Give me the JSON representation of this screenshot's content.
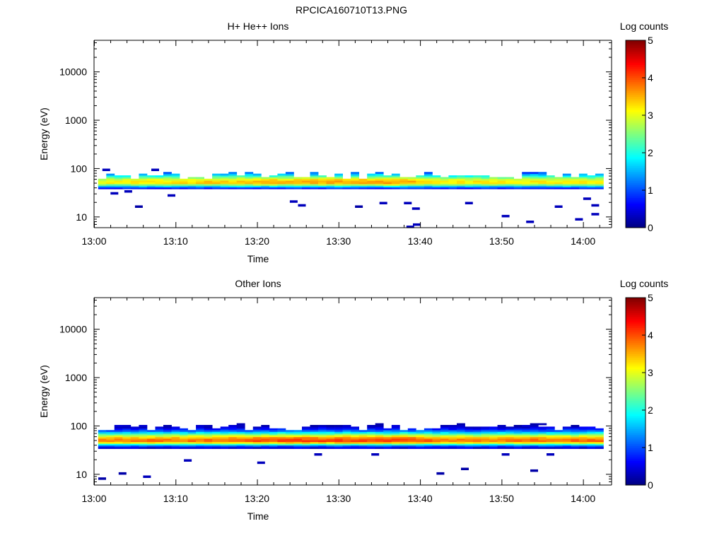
{
  "figure_title": "RPCICA160710T13.PNG",
  "colormap": [
    "#00007f",
    "#0000ff",
    "#007fff",
    "#00ffff",
    "#7fff7f",
    "#ffff00",
    "#ff7f00",
    "#ff0000",
    "#7f0000"
  ],
  "chart_data": [
    {
      "type": "heatmap",
      "title": "H+ He++ Ions",
      "xlabel": "Time",
      "ylabel": "Energy (eV)",
      "x_ticks": [
        "13:00",
        "13:10",
        "13:20",
        "13:30",
        "13:40",
        "13:50",
        "14:00"
      ],
      "x_range_minutes": [
        0,
        63.5
      ],
      "y_scale": "log",
      "y_ticks": [
        "10",
        "100",
        "1000",
        "10000"
      ],
      "y_range": [
        6,
        45000
      ],
      "colorbar": {
        "label": "Log counts",
        "range": [
          0,
          5
        ],
        "ticks": [
          "0",
          "1",
          "2",
          "3",
          "4",
          "5"
        ]
      },
      "band": {
        "peak_energy_eV": 50,
        "lower_edge_eV": 38,
        "upper_edge_eV": 70,
        "peak_log_counts": 3.5
      },
      "time_bin_minutes": 1.0,
      "peak_profile": [
        {
          "t": 0,
          "v": 3.1
        },
        {
          "t": 10,
          "v": 3.3
        },
        {
          "t": 20,
          "v": 3.5
        },
        {
          "t": 30,
          "v": 3.6
        },
        {
          "t": 38,
          "v": 3.6
        },
        {
          "t": 42,
          "v": 3.2
        },
        {
          "t": 50,
          "v": 3.2
        },
        {
          "t": 63,
          "v": 3.2
        }
      ],
      "sparse_counts": [
        {
          "t": 1.5,
          "e": 95,
          "v": 0.3
        },
        {
          "t": 2.5,
          "e": 31,
          "v": 0.3
        },
        {
          "t": 4.2,
          "e": 34,
          "v": 0.3
        },
        {
          "t": 5.5,
          "e": 16.5,
          "v": 0.2
        },
        {
          "t": 7.5,
          "e": 95,
          "v": 0.3
        },
        {
          "t": 9.5,
          "e": 28,
          "v": 0.3
        },
        {
          "t": 24.5,
          "e": 21,
          "v": 0.3
        },
        {
          "t": 25.5,
          "e": 17.5,
          "v": 0.3
        },
        {
          "t": 32.5,
          "e": 16.5,
          "v": 0.2
        },
        {
          "t": 35.5,
          "e": 19.5,
          "v": 0.3
        },
        {
          "t": 38.5,
          "e": 19.5,
          "v": 0.3
        },
        {
          "t": 39.5,
          "e": 15,
          "v": 0.3
        },
        {
          "t": 38.8,
          "e": 6.3,
          "v": 0.3
        },
        {
          "t": 39.6,
          "e": 7,
          "v": 0.3
        },
        {
          "t": 46,
          "e": 19.5,
          "v": 0.3
        },
        {
          "t": 50.5,
          "e": 10.5,
          "v": 0.3
        },
        {
          "t": 53.5,
          "e": 8,
          "v": 0.3
        },
        {
          "t": 57,
          "e": 16.5,
          "v": 0.3
        },
        {
          "t": 59.5,
          "e": 9,
          "v": 0.3
        },
        {
          "t": 60.5,
          "e": 24,
          "v": 0.3
        },
        {
          "t": 61.5,
          "e": 17.5,
          "v": 0.3
        },
        {
          "t": 61.5,
          "e": 11.5,
          "v": 0.3
        }
      ]
    },
    {
      "type": "heatmap",
      "title": "Other Ions",
      "xlabel": "Time",
      "ylabel": "Energy (eV)",
      "x_ticks": [
        "13:00",
        "13:10",
        "13:20",
        "13:30",
        "13:40",
        "13:50",
        "14:00"
      ],
      "x_range_minutes": [
        0,
        63.5
      ],
      "y_scale": "log",
      "y_ticks": [
        "10",
        "100",
        "1000",
        "10000"
      ],
      "y_range": [
        6,
        45000
      ],
      "colorbar": {
        "label": "Log counts",
        "range": [
          0,
          5
        ],
        "ticks": [
          "0",
          "1",
          "2",
          "3",
          "4",
          "5"
        ]
      },
      "band": {
        "peak_energy_eV": 48,
        "lower_edge_eV": 34,
        "upper_edge_eV": 95,
        "peak_log_counts": 4.0
      },
      "time_bin_minutes": 1.0,
      "peak_profile": [
        {
          "t": 0,
          "v": 3.8
        },
        {
          "t": 10,
          "v": 3.8
        },
        {
          "t": 20,
          "v": 4.0
        },
        {
          "t": 30,
          "v": 4.1
        },
        {
          "t": 38,
          "v": 4.1
        },
        {
          "t": 42,
          "v": 3.8
        },
        {
          "t": 50,
          "v": 3.8
        },
        {
          "t": 63,
          "v": 3.9
        }
      ],
      "sparse_counts": [
        {
          "t": 1.0,
          "e": 8.2,
          "v": 0.2
        },
        {
          "t": 3.5,
          "e": 10.5,
          "v": 0.2
        },
        {
          "t": 6.5,
          "e": 9,
          "v": 0.3
        },
        {
          "t": 11.5,
          "e": 19.5,
          "v": 0.3
        },
        {
          "t": 20.5,
          "e": 17.5,
          "v": 0.3
        },
        {
          "t": 27.5,
          "e": 26,
          "v": 0.3
        },
        {
          "t": 34.5,
          "e": 26,
          "v": 0.3
        },
        {
          "t": 42.5,
          "e": 10.5,
          "v": 0.2
        },
        {
          "t": 45.5,
          "e": 13,
          "v": 0.2
        },
        {
          "t": 50.5,
          "e": 26,
          "v": 0.3
        },
        {
          "t": 54,
          "e": 12,
          "v": 0.2
        },
        {
          "t": 56,
          "e": 26,
          "v": 0.3
        }
      ]
    }
  ]
}
